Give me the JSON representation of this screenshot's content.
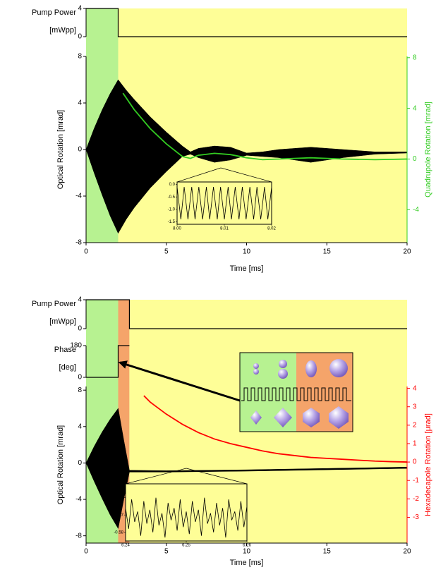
{
  "chart_data": [
    {
      "type": "line",
      "xlim": [
        0,
        20
      ],
      "xticks": [
        0,
        5,
        10,
        15,
        20
      ],
      "xlabel": "Time [ms]",
      "shaded": [
        {
          "xlim": [
            0,
            2
          ],
          "color": "#b7f291"
        },
        {
          "xlim": [
            2,
            20
          ],
          "color": "#fefe97"
        }
      ],
      "subplots": [
        {
          "ylabel": [
            "Pump Power",
            "[mWpp]"
          ],
          "ylim": [
            0,
            4
          ],
          "yticks": [
            0,
            4
          ],
          "series": [
            {
              "color": "#000000",
              "x": [
                0,
                2,
                2,
                20
              ],
              "values": [
                4,
                4,
                0,
                0
              ]
            }
          ]
        },
        {
          "ylabel": "Optical Rotation [mrad]",
          "ylim": [
            -8,
            8
          ],
          "yticks": [
            -8,
            -4,
            0,
            4,
            8
          ],
          "y2label": "Quadrupole Rotation [mrad]",
          "y2lim": [
            -6.6,
            8.1
          ],
          "y2ticks": [
            -4,
            0,
            4,
            8
          ],
          "y2color": "#33cc22",
          "series": [
            {
              "color": "#000000",
              "fill": true,
              "x": [
                0,
                0.5,
                1,
                1.5,
                2,
                2.5,
                3,
                4,
                5,
                6,
                6.5,
                7,
                8,
                9,
                10,
                11,
                12,
                13,
                14,
                15,
                16,
                18,
                20
              ],
              "values": [
                0,
                1.8,
                3.4,
                4.8,
                6,
                5.1,
                4.3,
                2.8,
                1.5,
                0.3,
                -0.2,
                0.1,
                0.3,
                0.2,
                -0.3,
                -0.2,
                0,
                0.1,
                0.2,
                0.1,
                0,
                -0.2,
                -0.2
              ],
              "lower": [
                0,
                -2,
                -3.9,
                -5.7,
                -7.2,
                -6,
                -5,
                -3.3,
                -1.9,
                -0.6,
                -0.4,
                -0.7,
                -1.1,
                -0.9,
                -0.5,
                -0.6,
                -0.7,
                -0.9,
                -1.1,
                -0.9,
                -0.7,
                -0.4,
                -0.3
              ]
            },
            {
              "color": "#33cc22",
              "axis": "y2",
              "x": [
                2.3,
                3,
                4,
                5,
                6,
                6.5,
                7,
                8,
                9,
                10,
                11,
                12,
                14,
                16,
                18,
                20
              ],
              "values": [
                5.2,
                3.9,
                2.4,
                1.2,
                0.2,
                0.05,
                0.3,
                0.45,
                0.35,
                0.1,
                -0.05,
                0,
                0.1,
                0,
                -0.05,
                0
              ]
            }
          ]
        }
      ],
      "inset": {
        "xlim": [
          8,
          8.02
        ],
        "xticks": [
          {
            "value": 8,
            "label": "8.00"
          },
          8.01,
          8.02
        ],
        "ylim": [
          -1.6,
          0.1
        ],
        "yticks": [
          {
            "value": 0,
            "label": "0.0"
          },
          -0.5,
          {
            "value": -1,
            "label": "-1.0"
          },
          -1.5
        ],
        "x": [
          8,
          8.0008,
          8.0015,
          8.0023,
          8.0031,
          8.0038,
          8.0046,
          8.0054,
          8.0062,
          8.0069,
          8.0077,
          8.0085,
          8.0092,
          8.01,
          8.0108,
          8.0115,
          8.0123,
          8.0131,
          8.0138,
          8.0146,
          8.0154,
          8.0162,
          8.0169,
          8.0177,
          8.0185,
          8.0192,
          8.02
        ],
        "values": [
          -0.1,
          -1.4,
          -0.1,
          -1.4,
          -0.1,
          -1.4,
          -0.1,
          -1.4,
          -0.1,
          -1.4,
          -0.1,
          -1.4,
          -0.1,
          -1.4,
          -0.1,
          -1.4,
          -0.1,
          -1.4,
          -0.1,
          -1.4,
          -0.1,
          -1.4,
          -0.1,
          -1.4,
          -0.1,
          -1.4,
          -0.1
        ]
      }
    },
    {
      "type": "line",
      "xlim": [
        0,
        20
      ],
      "xticks": [
        0,
        5,
        10,
        15,
        20
      ],
      "xlabel": "Time [ms]",
      "shaded": [
        {
          "xlim": [
            0,
            2
          ],
          "color": "#b7f291"
        },
        {
          "xlim": [
            2,
            2.7
          ],
          "color": "#f5a46a"
        },
        {
          "xlim": [
            2.7,
            20
          ],
          "color": "#fefe97"
        }
      ],
      "subplots": [
        {
          "ylabel": [
            "Pump Power",
            "[mWpp]"
          ],
          "ylim": [
            0,
            4
          ],
          "yticks": [
            0,
            4
          ],
          "series": [
            {
              "color": "#000000",
              "x": [
                0,
                2.7,
                2.7,
                20
              ],
              "values": [
                4,
                4,
                0,
                0
              ]
            }
          ]
        },
        {
          "ylabel": [
            "Phase",
            "[deg]"
          ],
          "ylim": [
            0,
            180
          ],
          "yticks": [
            0,
            180
          ],
          "series": [
            {
              "color": "#000000",
              "x": [
                0,
                2,
                2,
                2.7
              ],
              "values": [
                0,
                0,
                180,
                180
              ]
            }
          ]
        },
        {
          "ylabel": "Optical Rotation [mrad]",
          "ylim": [
            -8.8,
            8.4
          ],
          "yticks": [
            -8,
            -4,
            0,
            4,
            8
          ],
          "y2label": "Hexadecapole Rotation [μrad]",
          "y2lim": [
            -4.4,
            4.1
          ],
          "y2ticks": [
            -3,
            -2,
            -1,
            0,
            1,
            2,
            3,
            4
          ],
          "y2color": "#ff0000",
          "series": [
            {
              "color": "#000000",
              "fill": true,
              "x": [
                0,
                0.5,
                1,
                1.5,
                2,
                2.35,
                2.7,
                5,
                10,
                15,
                20
              ],
              "values": [
                0,
                1.8,
                3.4,
                4.8,
                6,
                2.5,
                -0.8,
                -0.85,
                -0.75,
                -0.6,
                -0.45
              ],
              "lower": [
                0,
                -2,
                -3.9,
                -5.7,
                -7.2,
                -4,
                -1,
                -1,
                -0.9,
                -0.75,
                -0.6
              ]
            },
            {
              "color": "#ff0000",
              "axis": "y2",
              "x": [
                3.6,
                4,
                5,
                6,
                7,
                8,
                9,
                10,
                11,
                12,
                13,
                14,
                15,
                16,
                17,
                18,
                19,
                20
              ],
              "values": [
                3.6,
                3.25,
                2.6,
                2.05,
                1.6,
                1.25,
                1,
                0.8,
                0.6,
                0.45,
                0.35,
                0.25,
                0.2,
                0.15,
                0.1,
                0.05,
                0.02,
                0
              ]
            }
          ]
        }
      ],
      "inset": {
        "xlim": [
          6.24,
          6.26
        ],
        "xticks": [
          6.24,
          6.25,
          6.26
        ],
        "ylim": [
          -0.585,
          -0.552
        ],
        "yticks": [
          -0.56,
          -0.57,
          -0.58
        ],
        "x": [
          6.24,
          6.2405,
          6.241,
          6.2415,
          6.242,
          6.2425,
          6.243,
          6.2435,
          6.244,
          6.2445,
          6.245,
          6.2455,
          6.246,
          6.2465,
          6.247,
          6.2475,
          6.248,
          6.2485,
          6.249,
          6.2495,
          6.25,
          6.2505,
          6.251,
          6.2515,
          6.252,
          6.2525,
          6.253,
          6.2535,
          6.254,
          6.2545,
          6.255,
          6.2555,
          6.256,
          6.2565,
          6.257,
          6.2575,
          6.258,
          6.2585,
          6.259,
          6.2595,
          6.26
        ],
        "values": [
          -0.566,
          -0.578,
          -0.561,
          -0.574,
          -0.568,
          -0.582,
          -0.562,
          -0.575,
          -0.567,
          -0.58,
          -0.56,
          -0.576,
          -0.569,
          -0.583,
          -0.563,
          -0.573,
          -0.566,
          -0.579,
          -0.561,
          -0.577,
          -0.568,
          -0.581,
          -0.562,
          -0.574,
          -0.567,
          -0.582,
          -0.56,
          -0.575,
          -0.569,
          -0.58,
          -0.563,
          -0.576,
          -0.566,
          -0.583,
          -0.561,
          -0.573,
          -0.568,
          -0.579,
          -0.562,
          -0.577,
          -0.565
        ]
      }
    }
  ]
}
